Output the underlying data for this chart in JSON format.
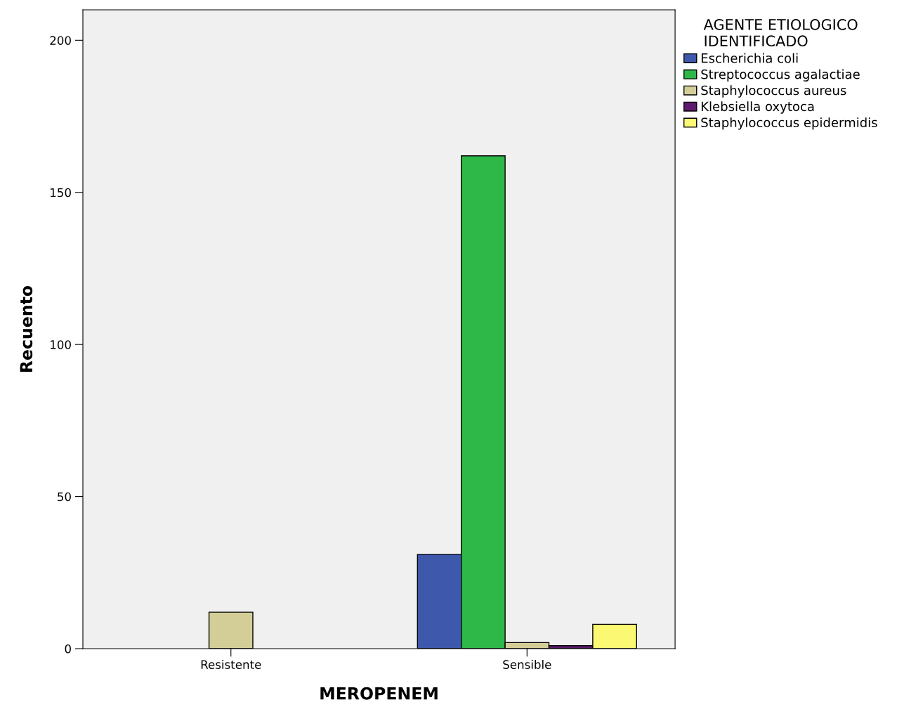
{
  "chart_data": {
    "type": "bar",
    "xlabel": "MEROPENEM",
    "ylabel": "Recuento",
    "legend_title": "AGENTE ETIOLOGICO\nIDENTIFICADO",
    "categories": [
      "Resistente",
      "Sensible"
    ],
    "series": [
      {
        "name": "Escherichia coli",
        "color": "#3e58ac",
        "values": [
          0,
          31
        ]
      },
      {
        "name": "Streptococcus agalactiae",
        "color": "#2eb848",
        "values": [
          0,
          162
        ]
      },
      {
        "name": "Staphylococcus aureus",
        "color": "#d3ce97",
        "values": [
          12,
          2
        ]
      },
      {
        "name": "Klebsiella oxytoca",
        "color": "#5e1a6e",
        "values": [
          0,
          1
        ]
      },
      {
        "name": "Staphylococcus epidermidis",
        "color": "#fbf873",
        "values": [
          0,
          8
        ]
      }
    ],
    "ylim": [
      0,
      210
    ],
    "yticks": [
      0,
      50,
      100,
      150,
      200
    ],
    "grid": false,
    "legend": "top right"
  }
}
